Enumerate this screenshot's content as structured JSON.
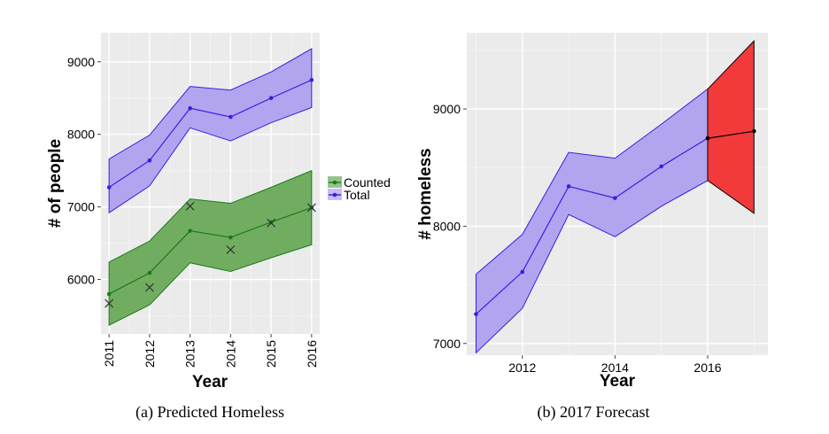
{
  "chart_data": [
    {
      "type": "line",
      "caption": "(a) Predicted Homeless",
      "xlabel": "Year",
      "ylabel": "# of people",
      "xlim": [
        2010.8,
        2016.2
      ],
      "ylim": [
        5250,
        9400
      ],
      "xticks": [
        2011,
        2012,
        2013,
        2014,
        2015,
        2016
      ],
      "yticks": [
        6000,
        7000,
        8000,
        9000
      ],
      "grid": true,
      "legend_position": "right",
      "series": [
        {
          "name": "Counted",
          "color": "#1a7a1a",
          "band_color": "#6aaa5a",
          "x": [
            2011,
            2012,
            2013,
            2014,
            2015,
            2016
          ],
          "y": [
            5800,
            6090,
            6670,
            6580,
            6790,
            6990
          ],
          "lower": [
            5370,
            5650,
            6230,
            6110,
            6300,
            6480
          ],
          "upper": [
            6240,
            6530,
            7110,
            7050,
            7270,
            7500
          ]
        },
        {
          "name": "Total",
          "color": "#3a1ee0",
          "band_color": "#b0a0f0",
          "x": [
            2011,
            2012,
            2013,
            2014,
            2015,
            2016
          ],
          "y": [
            7270,
            7640,
            8360,
            8240,
            8500,
            8750
          ],
          "lower": [
            6920,
            7290,
            8090,
            7910,
            8160,
            8370
          ],
          "upper": [
            7660,
            7990,
            8660,
            8610,
            8860,
            9180
          ]
        }
      ],
      "observed": {
        "marker": "x",
        "x": [
          2011,
          2012,
          2013,
          2014,
          2015,
          2016
        ],
        "y": [
          5670,
          5890,
          7010,
          6410,
          6780,
          6990
        ]
      }
    },
    {
      "type": "line",
      "caption": "(b) 2017 Forecast",
      "xlabel": "Year",
      "ylabel": "# homeless",
      "xlim": [
        2010.8,
        2017.3
      ],
      "ylim": [
        6900,
        9650
      ],
      "xticks": [
        2012,
        2014,
        2016
      ],
      "yticks": [
        7000,
        8000,
        9000
      ],
      "grid": true,
      "series": [
        {
          "color": "#3a1ee0",
          "band_color": "#b0a0f0",
          "x": [
            2011,
            2012,
            2013,
            2014,
            2015,
            2016
          ],
          "y": [
            7250,
            7610,
            8340,
            8240,
            8510,
            8750
          ],
          "lower": [
            6920,
            7300,
            8100,
            7910,
            8170,
            8390
          ],
          "upper": [
            7590,
            7930,
            8630,
            8580,
            8870,
            9170
          ]
        },
        {
          "color": "#000000",
          "band_color": "#f23030",
          "x": [
            2016,
            2017
          ],
          "y": [
            8750,
            8810
          ],
          "lower": [
            8390,
            8110
          ],
          "upper": [
            9170,
            9580
          ]
        }
      ]
    }
  ]
}
